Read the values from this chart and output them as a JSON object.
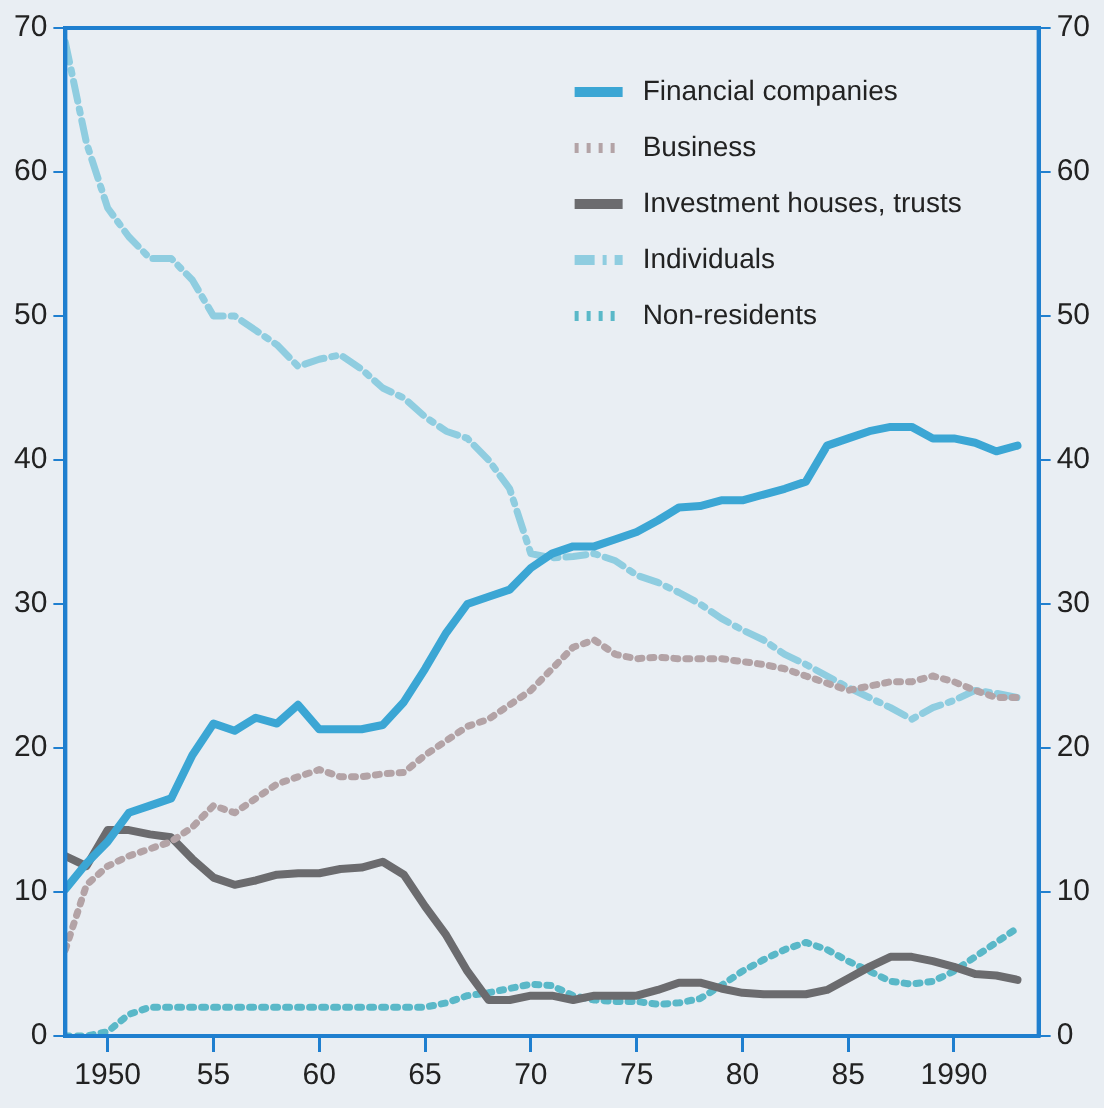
{
  "chart_data": {
    "type": "line",
    "x": [
      1948,
      1949,
      1950,
      1951,
      1952,
      1953,
      1954,
      1955,
      1956,
      1957,
      1958,
      1959,
      1960,
      1961,
      1962,
      1963,
      1964,
      1965,
      1966,
      1967,
      1968,
      1969,
      1970,
      1971,
      1972,
      1973,
      1974,
      1975,
      1976,
      1977,
      1978,
      1979,
      1980,
      1981,
      1982,
      1983,
      1984,
      1985,
      1986,
      1987,
      1988,
      1989,
      1990,
      1991,
      1992,
      1993
    ],
    "series": [
      {
        "name": "Financial companies",
        "color": "#3ba6d4",
        "line_style": "solid",
        "values": [
          10.2,
          12,
          13.5,
          15.5,
          16,
          16.5,
          19.5,
          21.7,
          21.2,
          22.1,
          21.7,
          23,
          21.3,
          21.3,
          21.3,
          21.6,
          23.2,
          25.5,
          28,
          30,
          30.5,
          31,
          32.5,
          33.5,
          34,
          34,
          34.5,
          35,
          35.8,
          36.7,
          36.8,
          37.2,
          37.2,
          37.6,
          38,
          38.5,
          41,
          41.5,
          42,
          42.3,
          42.3,
          41.5,
          41.5,
          41.2,
          40.6,
          41
        ]
      },
      {
        "name": "Business",
        "color": "#b3a3a6",
        "line_style": "dotted",
        "values": [
          6,
          10.5,
          11.8,
          12.5,
          13,
          13.5,
          14.5,
          16,
          15.5,
          16.5,
          17.5,
          18,
          18.5,
          18,
          18,
          18.2,
          18.3,
          19.5,
          20.5,
          21.5,
          22,
          23,
          24,
          25.5,
          27,
          27.5,
          26.5,
          26.2,
          26.3,
          26.2,
          26.2,
          26.2,
          26,
          25.8,
          25.5,
          25,
          24.5,
          24,
          24.3,
          24.6,
          24.6,
          25,
          24.6,
          24,
          23.5,
          23.5
        ]
      },
      {
        "name": "Investment houses, trusts",
        "color": "#6b6b6e",
        "line_style": "solid",
        "values": [
          12.5,
          11.8,
          14.3,
          14.3,
          14,
          13.8,
          12.3,
          11,
          10.5,
          10.8,
          11.2,
          11.3,
          11.3,
          11.6,
          11.7,
          12.1,
          11.2,
          9,
          7,
          4.5,
          2.5,
          2.5,
          2.8,
          2.8,
          2.5,
          2.8,
          2.8,
          2.8,
          3.2,
          3.7,
          3.7,
          3.3,
          3,
          2.9,
          2.9,
          2.9,
          3.2,
          4,
          4.8,
          5.5,
          5.5,
          5.2,
          4.8,
          4.3,
          4.2,
          3.9
        ]
      },
      {
        "name": "Individuals",
        "color": "#8fcde0",
        "line_style": "dashed",
        "values": [
          69,
          62,
          57.5,
          55.5,
          54,
          54,
          52.5,
          50,
          50,
          49,
          48,
          46.5,
          47,
          47.3,
          46.3,
          45,
          44.3,
          43,
          42,
          41.5,
          40,
          38,
          33.5,
          33.2,
          33.3,
          33.5,
          33,
          32,
          31.5,
          30.8,
          30,
          29,
          28.2,
          27.5,
          26.5,
          25.8,
          25,
          24.2,
          23.5,
          22.8,
          22,
          22.8,
          23.3,
          24,
          23.8,
          23.5
        ]
      },
      {
        "name": "Non-residents",
        "color": "#5ab8c8",
        "line_style": "dotted",
        "values": [
          0,
          0,
          0.3,
          1.5,
          2,
          2,
          2,
          2,
          2,
          2,
          2,
          2,
          2,
          2,
          2,
          2,
          2,
          2,
          2.3,
          2.8,
          3,
          3.3,
          3.6,
          3.5,
          2.8,
          2.5,
          2.4,
          2.4,
          2.2,
          2.3,
          2.6,
          3.5,
          4.5,
          5.3,
          6,
          6.5,
          6,
          5.2,
          4.5,
          3.8,
          3.6,
          3.8,
          4.5,
          5.5,
          6.5,
          7.5
        ]
      }
    ],
    "xlim": [
      1948,
      1994
    ],
    "xticks": [
      1950,
      {
        "value": 1955,
        "label": "55"
      },
      {
        "value": 1960,
        "label": "60"
      },
      {
        "value": 1965,
        "label": "65"
      },
      {
        "value": 1970,
        "label": "70"
      },
      {
        "value": 1975,
        "label": "75"
      },
      {
        "value": 1980,
        "label": "80"
      },
      {
        "value": 1985,
        "label": "85"
      },
      1990
    ],
    "ylim": [
      0,
      70
    ],
    "yticks": [
      0,
      10,
      20,
      30,
      40,
      50,
      60,
      70
    ],
    "y2lim": [
      0,
      70
    ],
    "y2ticks": [
      0,
      10,
      20,
      30,
      40,
      50,
      60,
      70
    ],
    "grid": false,
    "legend": "top right",
    "marker": "none"
  }
}
